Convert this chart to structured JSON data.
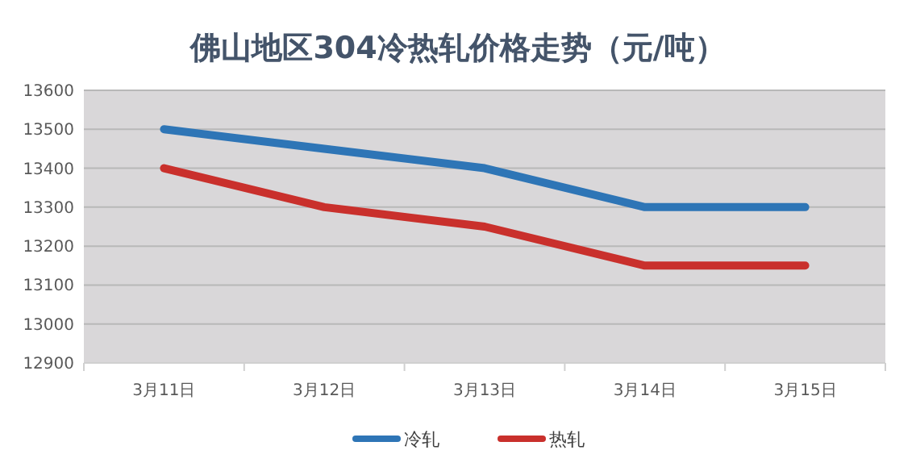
{
  "chart_data": {
    "type": "line",
    "title": "佛山地区304冷热轧价格走势（元/吨）",
    "categories": [
      "3月11日",
      "3月12日",
      "3月13日",
      "3月14日",
      "3月15日"
    ],
    "series": [
      {
        "name": "冷轧",
        "color": "#2e75b6",
        "values": [
          13500,
          13450,
          13400,
          13300,
          13300
        ]
      },
      {
        "name": "热轧",
        "color": "#c9302c",
        "values": [
          13400,
          13300,
          13250,
          13150,
          13150
        ]
      }
    ],
    "ylim": [
      12900,
      13600
    ],
    "yticks": [
      12900,
      13000,
      13100,
      13200,
      13300,
      13400,
      13500,
      13600
    ],
    "grid": "y",
    "legend": "bottom",
    "marker": "none",
    "line_style": "solid"
  }
}
